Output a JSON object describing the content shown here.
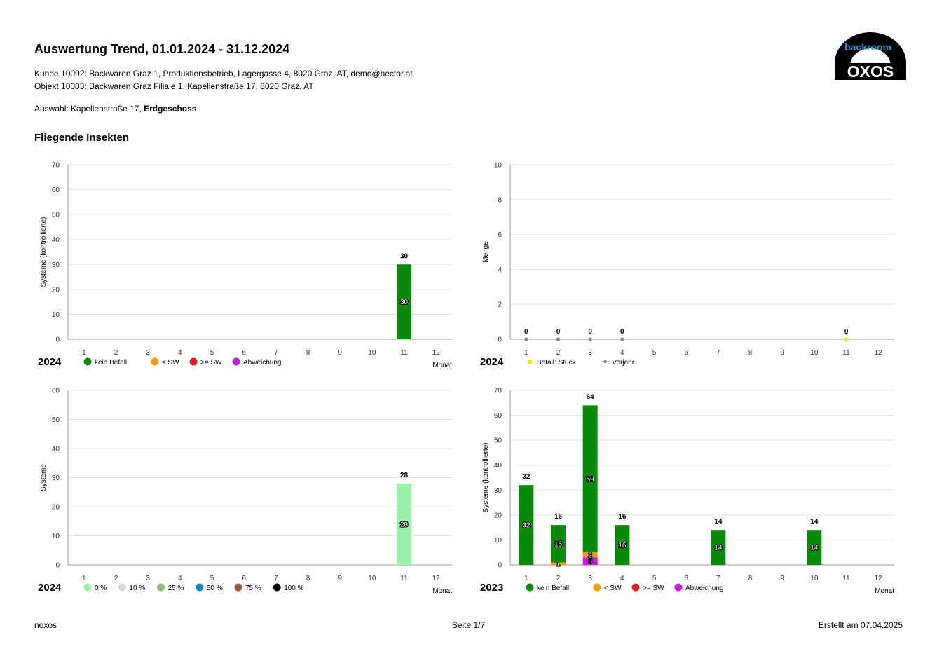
{
  "header": {
    "title": "Auswertung Trend, 01.01.2024 - 31.12.2024",
    "kunde": "Kunde 10002: Backwaren Graz 1, Produktionsbetrieb, Lagergasse 4, 8020 Graz, AT, demo@nector.at",
    "objekt": "Objekt 10003: Backwaren Graz Filiale 1, Kapellenstraße 17, 8020 Graz, AT",
    "auswahl_prefix": "Auswahl: Kapellenstraße 17, ",
    "auswahl_bold": "Erdgeschoss",
    "section": "Fliegende Insekten"
  },
  "logo": {
    "top_text": "backroom",
    "main_text": "OXOS",
    "accent": "#1a9be0"
  },
  "footer": {
    "left": "noxos",
    "center": "Seite 1/7",
    "right": "Erstellt am 07.04.2025"
  },
  "colors": {
    "kein_befall": "#0a8a0a",
    "lt_sw": "#f59a0c",
    "ge_sw": "#e8141e",
    "abweichung": "#c51cdc",
    "p0": "#98f0a8",
    "p10": "#d9dccd",
    "p25": "#97b97c",
    "p50": "#1486b4",
    "p75": "#9c5a3c",
    "p100": "#000000",
    "befall": "#f2e600",
    "vorjahr": "#888888",
    "grid": "#e3e3e3"
  },
  "chart_data": [
    {
      "id": "chart1",
      "type": "bar",
      "stacked": true,
      "year": "2024",
      "ylabel": "Systeme (kontrollierte)",
      "xlabel": "Monat",
      "ylim": [
        0,
        70
      ],
      "yticks": [
        0,
        10,
        20,
        30,
        40,
        50,
        60,
        70
      ],
      "categories": [
        "1",
        "2",
        "3",
        "4",
        "5",
        "6",
        "7",
        "8",
        "9",
        "10",
        "11",
        "12"
      ],
      "series": [
        {
          "name": "kein Befall",
          "color": "#0a8a0a",
          "values": [
            0,
            0,
            0,
            0,
            0,
            0,
            0,
            0,
            0,
            0,
            30,
            0
          ]
        },
        {
          "name": "< SW",
          "color": "#f59a0c",
          "values": [
            0,
            0,
            0,
            0,
            0,
            0,
            0,
            0,
            0,
            0,
            0,
            0
          ]
        },
        {
          "name": ">= SW",
          "color": "#e8141e",
          "values": [
            0,
            0,
            0,
            0,
            0,
            0,
            0,
            0,
            0,
            0,
            0,
            0
          ]
        },
        {
          "name": "Abweichung",
          "color": "#c51cdc",
          "values": [
            0,
            0,
            0,
            0,
            0,
            0,
            0,
            0,
            0,
            0,
            0,
            0
          ]
        }
      ],
      "totals": [
        null,
        null,
        null,
        null,
        null,
        null,
        null,
        null,
        null,
        null,
        30,
        null
      ],
      "legend": [
        {
          "label": "kein Befall",
          "color": "#0a8a0a"
        },
        {
          "label": "< SW",
          "color": "#f59a0c"
        },
        {
          "label": ">= SW",
          "color": "#e8141e"
        },
        {
          "label": "Abweichung",
          "color": "#c51cdc"
        }
      ]
    },
    {
      "id": "chart2",
      "type": "line",
      "year": "2024",
      "ylabel": "Menge",
      "xlabel": "",
      "ylim": [
        0,
        10
      ],
      "yticks": [
        0,
        2,
        4,
        6,
        8,
        10
      ],
      "categories": [
        "1",
        "2",
        "3",
        "4",
        "5",
        "6",
        "7",
        "8",
        "9",
        "10",
        "11",
        "12"
      ],
      "series": [
        {
          "name": "Befall: Stück",
          "color": "#f2e600",
          "values": [
            null,
            null,
            null,
            null,
            null,
            null,
            null,
            null,
            null,
            null,
            0,
            null
          ],
          "labels": [
            null,
            null,
            null,
            null,
            null,
            null,
            null,
            null,
            null,
            null,
            "0",
            null
          ]
        },
        {
          "name": "Vorjahr",
          "color": "#888888",
          "values": [
            0,
            0,
            0,
            0,
            null,
            null,
            null,
            null,
            null,
            null,
            null,
            null
          ],
          "labels": [
            "0",
            "0",
            "0",
            "0",
            null,
            null,
            null,
            null,
            null,
            null,
            null,
            null
          ]
        }
      ],
      "legend": [
        {
          "label": "Befall: Stück",
          "color": "#f2e600",
          "marker": "star"
        },
        {
          "label": "Vorjahr",
          "color": "#888888",
          "marker": "line"
        }
      ]
    },
    {
      "id": "chart3",
      "type": "bar",
      "stacked": true,
      "year": "2024",
      "ylabel": "Systeme",
      "xlabel": "Monat",
      "ylim": [
        0,
        60
      ],
      "yticks": [
        0,
        10,
        20,
        30,
        40,
        50,
        60
      ],
      "categories": [
        "1",
        "2",
        "3",
        "4",
        "5",
        "6",
        "7",
        "8",
        "9",
        "10",
        "11",
        "12"
      ],
      "series": [
        {
          "name": "0 %",
          "color": "#98f0a8",
          "values": [
            0,
            0,
            0,
            0,
            0,
            0,
            0,
            0,
            0,
            0,
            28,
            0
          ]
        },
        {
          "name": "10 %",
          "color": "#d9dccd",
          "values": [
            0,
            0,
            0,
            0,
            0,
            0,
            0,
            0,
            0,
            0,
            0,
            0
          ]
        },
        {
          "name": "25 %",
          "color": "#97b97c",
          "values": [
            0,
            0,
            0,
            0,
            0,
            0,
            0,
            0,
            0,
            0,
            0,
            0
          ]
        },
        {
          "name": "50 %",
          "color": "#1486b4",
          "values": [
            0,
            0,
            0,
            0,
            0,
            0,
            0,
            0,
            0,
            0,
            0,
            0
          ]
        },
        {
          "name": "75 %",
          "color": "#9c5a3c",
          "values": [
            0,
            0,
            0,
            0,
            0,
            0,
            0,
            0,
            0,
            0,
            0,
            0
          ]
        },
        {
          "name": "100 %",
          "color": "#000000",
          "values": [
            0,
            0,
            0,
            0,
            0,
            0,
            0,
            0,
            0,
            0,
            0,
            0
          ]
        }
      ],
      "totals": [
        null,
        null,
        null,
        null,
        null,
        null,
        null,
        null,
        null,
        null,
        28,
        null
      ],
      "legend": [
        {
          "label": "0 %",
          "color": "#98f0a8"
        },
        {
          "label": "10 %",
          "color": "#d9dccd"
        },
        {
          "label": "25 %",
          "color": "#97b97c"
        },
        {
          "label": "50 %",
          "color": "#1486b4"
        },
        {
          "label": "75 %",
          "color": "#9c5a3c"
        },
        {
          "label": "100 %",
          "color": "#000000"
        }
      ]
    },
    {
      "id": "chart4",
      "type": "bar",
      "stacked": true,
      "year": "2023",
      "ylabel": "Systeme (kontrollierte)",
      "xlabel": "Monat",
      "ylim": [
        0,
        70
      ],
      "yticks": [
        0,
        10,
        20,
        30,
        40,
        50,
        60,
        70
      ],
      "categories": [
        "1",
        "2",
        "3",
        "4",
        "5",
        "6",
        "7",
        "8",
        "9",
        "10",
        "11",
        "12"
      ],
      "series": [
        {
          "name": "Abweichung",
          "color": "#c51cdc",
          "values": [
            0,
            0,
            3,
            0,
            0,
            0,
            0,
            0,
            0,
            0,
            0,
            0
          ]
        },
        {
          "name": "< SW",
          "color": "#f59a0c",
          "values": [
            0,
            1,
            2,
            0,
            0,
            0,
            0,
            0,
            0,
            0,
            0,
            0
          ]
        },
        {
          "name": ">= SW",
          "color": "#e8141e",
          "values": [
            0,
            0,
            0,
            0,
            0,
            0,
            0,
            0,
            0,
            0,
            0,
            0
          ]
        },
        {
          "name": "kein Befall",
          "color": "#0a8a0a",
          "values": [
            32,
            15,
            59,
            16,
            0,
            0,
            14,
            0,
            0,
            14,
            0,
            0
          ]
        }
      ],
      "totals": [
        32,
        16,
        64,
        16,
        null,
        null,
        14,
        null,
        null,
        14,
        null,
        null
      ],
      "legend": [
        {
          "label": "kein Befall",
          "color": "#0a8a0a"
        },
        {
          "label": "< SW",
          "color": "#f59a0c"
        },
        {
          "label": ">= SW",
          "color": "#e8141e"
        },
        {
          "label": "Abweichung",
          "color": "#c51cdc"
        }
      ]
    }
  ]
}
